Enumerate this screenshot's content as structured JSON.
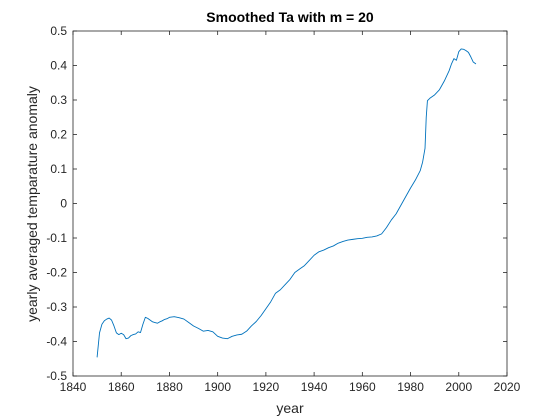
{
  "chart_data": {
    "type": "line",
    "title": "Smoothed Ta with m = 20",
    "xlabel": "year",
    "ylabel": "yearly averaged temparature anomaly",
    "xlim": [
      1840,
      2020
    ],
    "ylim": [
      -0.5,
      0.5
    ],
    "xticks": [
      1840,
      1860,
      1880,
      1900,
      1920,
      1940,
      1960,
      1980,
      2000,
      2020
    ],
    "yticks": [
      -0.5,
      -0.4,
      -0.3,
      -0.2,
      -0.1,
      0,
      0.1,
      0.2,
      0.3,
      0.4,
      0.5
    ],
    "xtick_labels": [
      "1840",
      "1860",
      "1880",
      "1900",
      "1920",
      "1940",
      "1960",
      "1980",
      "2000",
      "2020"
    ],
    "ytick_labels": [
      "-0.5",
      "-0.4",
      "-0.3",
      "-0.2",
      "-0.1",
      "0",
      "0.1",
      "0.2",
      "0.3",
      "0.4",
      "0.5"
    ],
    "grid": false,
    "box": true,
    "series": [
      {
        "color": "#0072BD",
        "x": [
          1850,
          1850.5,
          1851,
          1852,
          1853,
          1854,
          1855,
          1856,
          1857,
          1858,
          1859,
          1860,
          1861,
          1862,
          1863,
          1864,
          1865,
          1866,
          1867,
          1868,
          1869,
          1870,
          1871,
          1872,
          1873,
          1874,
          1875,
          1876,
          1877,
          1878,
          1879,
          1880,
          1882,
          1884,
          1886,
          1888,
          1890,
          1892,
          1894,
          1896,
          1898,
          1900,
          1902,
          1904,
          1906,
          1908,
          1910,
          1912,
          1914,
          1916,
          1918,
          1920,
          1922,
          1924,
          1926,
          1928,
          1930,
          1932,
          1934,
          1936,
          1938,
          1940,
          1942,
          1944,
          1946,
          1948,
          1950,
          1952,
          1954,
          1956,
          1958,
          1960,
          1962,
          1964,
          1966,
          1968,
          1970,
          1972,
          1974,
          1976,
          1978,
          1980,
          1982,
          1984,
          1985,
          1986,
          1986.5,
          1987,
          1988,
          1990,
          1992,
          1994,
          1996,
          1997,
          1998,
          1999,
          2000,
          2001,
          2002,
          2003,
          2004,
          2005,
          2006,
          2007
        ],
        "y": [
          -0.445,
          -0.41,
          -0.375,
          -0.35,
          -0.34,
          -0.335,
          -0.332,
          -0.338,
          -0.355,
          -0.375,
          -0.38,
          -0.376,
          -0.38,
          -0.392,
          -0.39,
          -0.383,
          -0.38,
          -0.378,
          -0.372,
          -0.374,
          -0.35,
          -0.33,
          -0.333,
          -0.338,
          -0.343,
          -0.345,
          -0.347,
          -0.343,
          -0.34,
          -0.336,
          -0.334,
          -0.33,
          -0.328,
          -0.331,
          -0.335,
          -0.345,
          -0.355,
          -0.362,
          -0.37,
          -0.368,
          -0.372,
          -0.385,
          -0.39,
          -0.392,
          -0.385,
          -0.381,
          -0.379,
          -0.37,
          -0.355,
          -0.342,
          -0.325,
          -0.305,
          -0.285,
          -0.26,
          -0.25,
          -0.235,
          -0.22,
          -0.2,
          -0.19,
          -0.18,
          -0.165,
          -0.15,
          -0.14,
          -0.135,
          -0.128,
          -0.123,
          -0.115,
          -0.11,
          -0.106,
          -0.104,
          -0.102,
          -0.101,
          -0.098,
          -0.097,
          -0.094,
          -0.088,
          -0.07,
          -0.048,
          -0.03,
          -0.005,
          0.02,
          0.045,
          0.068,
          0.095,
          0.12,
          0.16,
          0.25,
          0.298,
          0.305,
          0.315,
          0.33,
          0.355,
          0.385,
          0.405,
          0.42,
          0.415,
          0.44,
          0.448,
          0.447,
          0.443,
          0.438,
          0.425,
          0.41,
          0.405
        ]
      }
    ]
  }
}
